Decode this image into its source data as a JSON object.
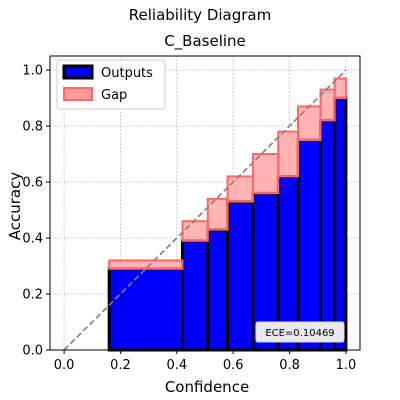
{
  "chart_data": {
    "type": "bar",
    "title": "Reliability Diagram",
    "subtitle": "C_Baseline",
    "xlabel": "Confidence",
    "ylabel": "Accuracy",
    "xlim": [
      -0.05,
      1.05
    ],
    "ylim": [
      0.0,
      1.05
    ],
    "x_ticks": [
      "0.0",
      "0.2",
      "0.4",
      "0.6",
      "0.8",
      "1.0"
    ],
    "y_ticks": [
      "0.0",
      "0.2",
      "0.4",
      "0.6",
      "0.8",
      "1.0"
    ],
    "grid": true,
    "legend_position": "top-left",
    "legend": [
      "Outputs",
      "Gap"
    ],
    "annotation": "ECE=0.10469",
    "colors": {
      "outputs": "#0000ff",
      "outputs_edge": "#000000",
      "gap": "#ff9a9a",
      "gap_edge": "#ff6666",
      "diagonal": "#808080"
    },
    "bins": [
      {
        "left": 0.16,
        "right": 0.42,
        "accuracy": 0.29,
        "confidence": 0.32
      },
      {
        "left": 0.42,
        "right": 0.51,
        "accuracy": 0.39,
        "confidence": 0.46
      },
      {
        "left": 0.51,
        "right": 0.58,
        "accuracy": 0.43,
        "confidence": 0.54
      },
      {
        "left": 0.58,
        "right": 0.67,
        "accuracy": 0.53,
        "confidence": 0.62
      },
      {
        "left": 0.67,
        "right": 0.76,
        "accuracy": 0.56,
        "confidence": 0.7
      },
      {
        "left": 0.76,
        "right": 0.83,
        "accuracy": 0.62,
        "confidence": 0.78
      },
      {
        "left": 0.83,
        "right": 0.91,
        "accuracy": 0.75,
        "confidence": 0.87
      },
      {
        "left": 0.91,
        "right": 0.96,
        "accuracy": 0.82,
        "confidence": 0.93
      },
      {
        "left": 0.96,
        "right": 1.0,
        "accuracy": 0.9,
        "confidence": 0.97
      }
    ]
  }
}
